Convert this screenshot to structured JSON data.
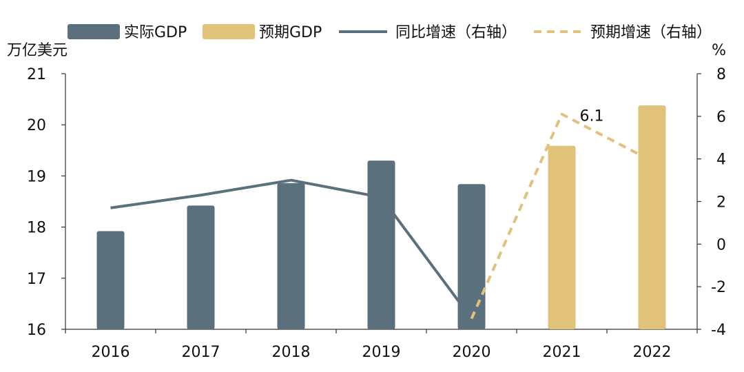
{
  "chart_data": {
    "type": "bar",
    "categories": [
      "2016",
      "2017",
      "2018",
      "2019",
      "2020",
      "2021",
      "2022"
    ],
    "left_axis": {
      "unit": "万亿美元",
      "min": 16,
      "max": 21,
      "ticks": [
        16,
        17,
        18,
        19,
        20,
        21
      ]
    },
    "right_axis": {
      "unit": "%",
      "min": -4,
      "max": 8,
      "ticks": [
        -4,
        -2,
        0,
        2,
        4,
        6,
        8
      ]
    },
    "series": [
      {
        "name": "实际GDP",
        "kind": "bar",
        "axis": "left",
        "color": "#5a707c",
        "values": [
          17.92,
          18.42,
          18.86,
          19.3,
          18.84,
          null,
          null
        ]
      },
      {
        "name": "预期GDP",
        "kind": "bar",
        "axis": "left",
        "color": "#e0c27a",
        "values": [
          null,
          null,
          null,
          null,
          null,
          19.59,
          20.38
        ]
      },
      {
        "name": "同比增速（右轴）",
        "kind": "line",
        "axis": "right",
        "color": "#5a707c",
        "values": [
          1.7,
          2.3,
          3.0,
          2.2,
          -3.5,
          null,
          null
        ]
      },
      {
        "name": "预期增速（右轴）",
        "kind": "dashed-line",
        "axis": "right",
        "color": "#e0c27a",
        "values": [
          null,
          null,
          null,
          null,
          -3.5,
          6.1,
          3.9
        ]
      }
    ],
    "annotations": [
      {
        "series": 3,
        "category": "2021",
        "text": "6.1"
      }
    ],
    "legend_position": "top",
    "grid": false
  }
}
